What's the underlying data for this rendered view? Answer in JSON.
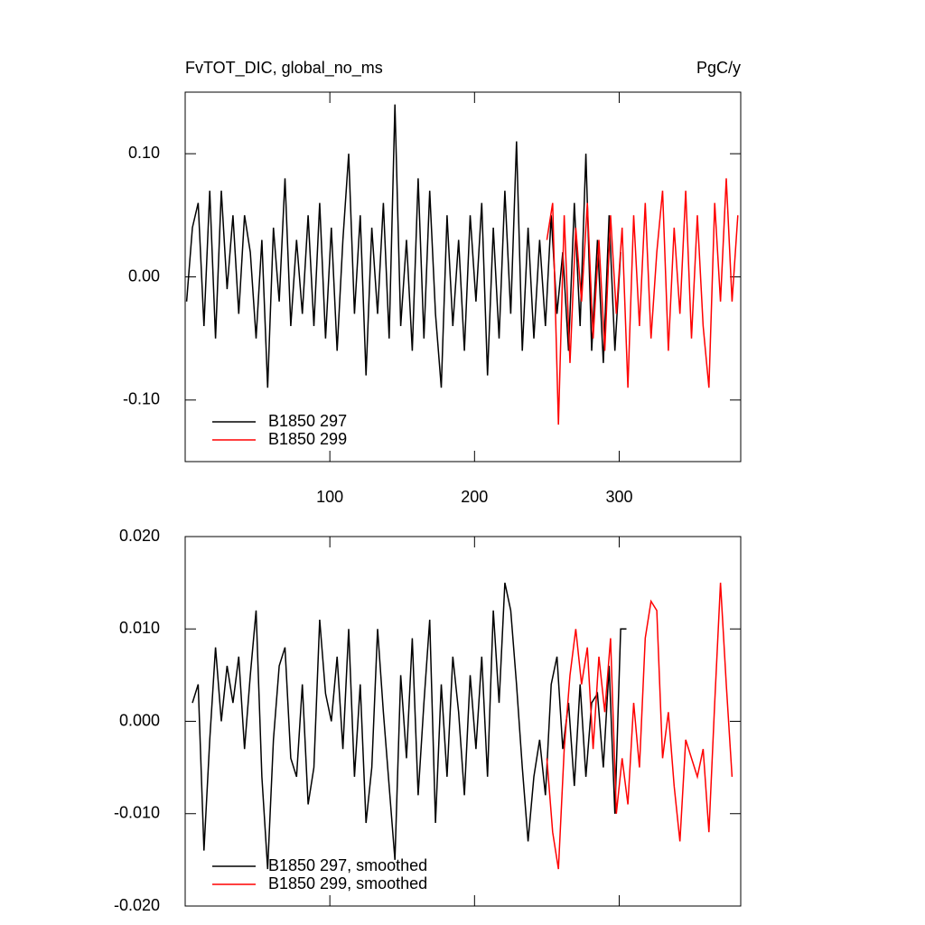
{
  "chart_data": [
    {
      "type": "line",
      "title": "FvTOT_DIC, global_no_ms",
      "units": "PgC/y",
      "xlim": [
        0,
        384
      ],
      "xticks": [
        100,
        200,
        300
      ],
      "show_xtick_labels": true,
      "ylim": [
        -0.15,
        0.15
      ],
      "yticks": [
        {
          "value": 0.1,
          "label": "0.10"
        },
        {
          "value": 0,
          "label": "0.00"
        },
        {
          "value": -0.1,
          "label": "-0.10"
        }
      ],
      "legend": "lower left",
      "series": [
        {
          "name": "B1850 297",
          "color": "#000000",
          "x": [
            1,
            5,
            9,
            13,
            17,
            21,
            25,
            29,
            33,
            37,
            41,
            45,
            49,
            53,
            57,
            61,
            65,
            69,
            73,
            77,
            81,
            85,
            89,
            93,
            97,
            101,
            105,
            109,
            113,
            117,
            121,
            125,
            129,
            133,
            137,
            141,
            145,
            149,
            153,
            157,
            161,
            165,
            169,
            173,
            177,
            181,
            185,
            189,
            193,
            197,
            201,
            205,
            209,
            213,
            217,
            221,
            225,
            229,
            233,
            237,
            241,
            245,
            249,
            253,
            257,
            261,
            265,
            269,
            273,
            277,
            281,
            285,
            289,
            293,
            297,
            301
          ],
          "values": [
            -0.02,
            0.04,
            0.06,
            -0.04,
            0.07,
            -0.05,
            0.07,
            -0.01,
            0.05,
            -0.03,
            0.05,
            0.02,
            -0.05,
            0.03,
            -0.09,
            0.04,
            -0.02,
            0.08,
            -0.04,
            0.03,
            -0.03,
            0.05,
            -0.04,
            0.06,
            -0.05,
            0.04,
            -0.06,
            0.03,
            0.1,
            -0.03,
            0.05,
            -0.08,
            0.04,
            -0.03,
            0.06,
            -0.05,
            0.14,
            -0.04,
            0.03,
            -0.06,
            0.08,
            -0.05,
            0.07,
            -0.03,
            -0.09,
            0.05,
            -0.04,
            0.03,
            -0.06,
            0.05,
            -0.02,
            0.06,
            -0.08,
            0.04,
            -0.05,
            0.07,
            -0.03,
            0.11,
            -0.06,
            0.04,
            -0.05,
            0.03,
            -0.04,
            0.05,
            -0.03,
            0.02,
            -0.06,
            0.06,
            -0.04,
            0.1,
            -0.06,
            0.03,
            -0.07,
            0.05,
            -0.06,
            0.02
          ]
        },
        {
          "name": "B1850 299",
          "color": "#ff0000",
          "x": [
            250,
            254,
            258,
            262,
            266,
            270,
            274,
            278,
            282,
            286,
            290,
            294,
            298,
            302,
            306,
            310,
            314,
            318,
            322,
            326,
            330,
            334,
            338,
            342,
            346,
            350,
            354,
            358,
            362,
            366,
            370,
            374,
            378,
            382
          ],
          "values": [
            0.03,
            0.06,
            -0.12,
            0.05,
            -0.07,
            0.04,
            -0.02,
            0.06,
            -0.05,
            0.03,
            -0.06,
            0.05,
            -0.03,
            0.04,
            -0.09,
            0.05,
            -0.04,
            0.06,
            -0.05,
            0.02,
            0.07,
            -0.06,
            0.04,
            -0.03,
            0.07,
            -0.05,
            0.05,
            -0.04,
            -0.09,
            0.06,
            -0.02,
            0.08,
            -0.02,
            0.05
          ]
        }
      ]
    },
    {
      "type": "line",
      "xlim": [
        0,
        384
      ],
      "xticks": [
        100,
        200,
        300
      ],
      "show_xtick_labels": false,
      "ylim": [
        -0.02,
        0.02
      ],
      "yticks": [
        {
          "value": 0.02,
          "label": "0.020"
        },
        {
          "value": 0.01,
          "label": "0.010"
        },
        {
          "value": 0,
          "label": "0.000"
        },
        {
          "value": -0.01,
          "label": "-0.010"
        },
        {
          "value": -0.02,
          "label": "-0.020"
        }
      ],
      "legend": "lower left",
      "series": [
        {
          "name": "B1850 297, smoothed",
          "color": "#000000",
          "x": [
            5,
            9,
            13,
            17,
            21,
            25,
            29,
            33,
            37,
            41,
            45,
            49,
            53,
            57,
            61,
            65,
            69,
            73,
            77,
            81,
            85,
            89,
            93,
            97,
            101,
            105,
            109,
            113,
            117,
            121,
            125,
            129,
            133,
            137,
            141,
            145,
            149,
            153,
            157,
            161,
            165,
            169,
            173,
            177,
            181,
            185,
            189,
            193,
            197,
            201,
            205,
            209,
            213,
            217,
            221,
            225,
            229,
            233,
            237,
            241,
            245,
            249,
            253,
            257,
            261,
            265,
            269,
            273,
            277,
            281,
            285,
            289,
            293,
            297,
            301,
            305
          ],
          "values": [
            0.002,
            0.004,
            -0.014,
            -0.002,
            0.008,
            0,
            0.006,
            0.002,
            0.007,
            -0.003,
            0.005,
            0.012,
            -0.006,
            -0.016,
            -0.002,
            0.006,
            0.008,
            -0.004,
            -0.006,
            0.004,
            -0.009,
            -0.005,
            0.011,
            0.003,
            0,
            0.007,
            -0.003,
            0.01,
            -0.006,
            0.004,
            -0.011,
            -0.005,
            0.01,
            0.001,
            -0.007,
            -0.015,
            0.005,
            -0.004,
            0.009,
            -0.008,
            0.002,
            0.011,
            -0.011,
            0.004,
            -0.006,
            0.007,
            0.001,
            -0.008,
            0.005,
            -0.003,
            0.007,
            -0.006,
            0.012,
            0.002,
            0.015,
            0.012,
            0.004,
            -0.005,
            -0.013,
            -0.006,
            -0.002,
            -0.008,
            0.004,
            0.007,
            -0.003,
            0.002,
            -0.007,
            0.004,
            -0.006,
            0.002,
            0.003,
            -0.005,
            0.006,
            -0.01,
            0.01,
            0.01
          ]
        },
        {
          "name": "B1850 299, smoothed",
          "color": "#ff0000",
          "x": [
            250,
            254,
            258,
            262,
            266,
            270,
            274,
            278,
            282,
            286,
            290,
            294,
            298,
            302,
            306,
            310,
            314,
            318,
            322,
            326,
            330,
            334,
            338,
            342,
            346,
            350,
            354,
            358,
            362,
            366,
            370,
            374,
            378
          ],
          "values": [
            -0.004,
            -0.012,
            -0.016,
            -0.003,
            0.005,
            0.01,
            0.004,
            0.008,
            -0.003,
            0.007,
            0.001,
            0.009,
            -0.01,
            -0.004,
            -0.009,
            0.002,
            -0.005,
            0.009,
            0.013,
            0.012,
            -0.004,
            0.001,
            -0.007,
            -0.013,
            -0.002,
            -0.004,
            -0.006,
            -0.003,
            -0.012,
            0.002,
            0.015,
            0.004,
            -0.006
          ]
        }
      ]
    }
  ]
}
